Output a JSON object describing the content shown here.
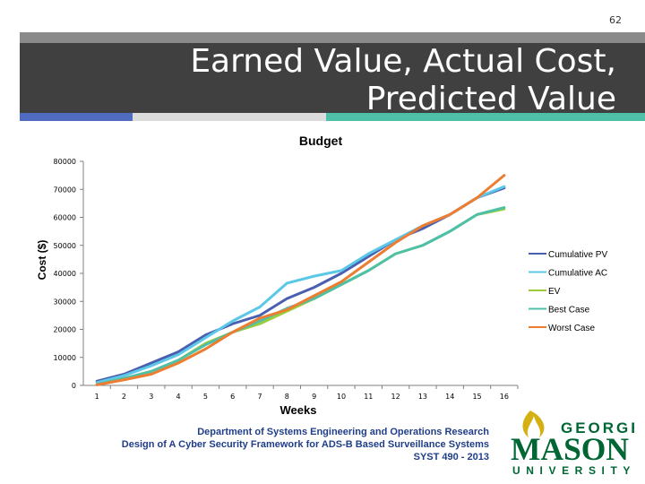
{
  "slide": {
    "number": "62",
    "title": "Earned Value, Actual Cost, Predicted Value"
  },
  "colors": {
    "header": "#404040",
    "header_strip": "#8a8a8a",
    "accent": [
      "#4f6cc0",
      "#dcdcdc",
      "#4fc0a8"
    ],
    "logo_green": "#006633",
    "logo_gold": "#d4b012",
    "footer_text": "#1f3e8a"
  },
  "footer": {
    "line1": "Department of Systems Engineering and Operations Research",
    "line2": "Design of A Cyber Security Framework for ADS-B Based Surveillance Systems",
    "line3": "SYST 490 - 2013"
  },
  "logo": {
    "top": "GEORGE",
    "main": "MASON",
    "bottom": "UNIVERSITY",
    "icon": "gmu-flame-logo"
  },
  "chart_data": {
    "type": "line",
    "title": "Budget",
    "xlabel": "Weeks",
    "ylabel": "Cost ($)",
    "ylim": [
      0,
      80000
    ],
    "yticks": [
      0,
      10000,
      20000,
      30000,
      40000,
      50000,
      60000,
      70000,
      80000
    ],
    "x": [
      1,
      2,
      3,
      4,
      5,
      6,
      7,
      8,
      9,
      10,
      11,
      12,
      13,
      14,
      15,
      16
    ],
    "legend_position": "right",
    "grid": false,
    "series": [
      {
        "name": "Cumulative PV",
        "color": "#4a5fb0",
        "values": [
          1500,
          4000,
          8000,
          12000,
          18000,
          22000,
          25000,
          31000,
          35000,
          40000,
          46000,
          52000,
          56000,
          61000,
          67000,
          70500
        ]
      },
      {
        "name": "Cumulative AC",
        "color": "#5cc8e8",
        "values": [
          1000,
          3500,
          7000,
          11000,
          17000,
          23000,
          28000,
          36500,
          39000,
          41000,
          47000,
          52000,
          57000,
          61000,
          67000,
          71000
        ]
      },
      {
        "name": "EV",
        "color": "#9ccc3c",
        "values": [
          300,
          2500,
          5000,
          9000,
          15000,
          19000,
          22000,
          26500,
          31000,
          36000,
          41000,
          47000,
          50000,
          55000,
          61000,
          63000
        ]
      },
      {
        "name": "Best Case",
        "color": "#4fc0a8",
        "values": [
          300,
          2500,
          5000,
          9000,
          14500,
          19000,
          23000,
          27500,
          31000,
          36000,
          41000,
          47000,
          50000,
          55000,
          61000,
          63500
        ]
      },
      {
        "name": "Worst Case",
        "color": "#ed7d31",
        "values": [
          200,
          2000,
          4000,
          8000,
          13000,
          19000,
          24000,
          27000,
          32000,
          37000,
          44000,
          51000,
          57000,
          61000,
          67000,
          75000
        ]
      }
    ]
  }
}
